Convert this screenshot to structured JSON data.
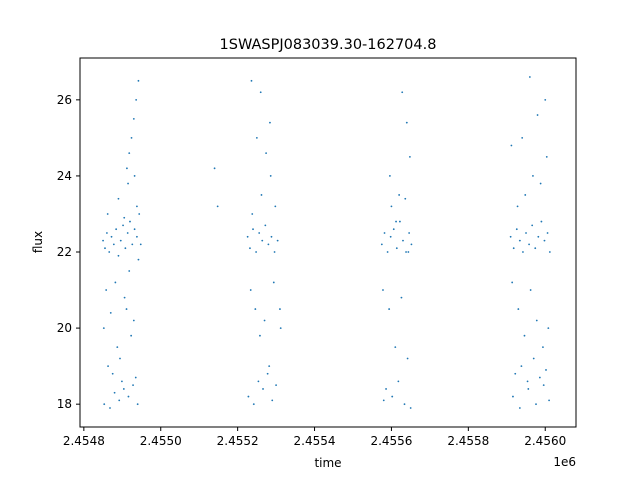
{
  "chart_data": {
    "type": "scatter",
    "title": "1SWASPJ083039.30-162704.8",
    "xlabel": "time",
    "ylabel": "flux",
    "x_offset_label": "1e6",
    "xlim": [
      2454790,
      2456080
    ],
    "ylim": [
      17.4,
      27.1
    ],
    "x_ticks": [
      2454800,
      2455000,
      2455200,
      2455400,
      2455600,
      2455800,
      2456000
    ],
    "x_tick_labels": [
      "2.4548",
      "2.4550",
      "2.4552",
      "2.4554",
      "2.4556",
      "2.4558",
      "2.4560"
    ],
    "y_ticks": [
      18,
      20,
      22,
      24,
      26
    ],
    "y_tick_labels": [
      "18",
      "20",
      "22",
      "24",
      "26"
    ],
    "grid": false,
    "marker_color": "#1f77b4",
    "series": [
      {
        "x": [
          2454850,
          2454855,
          2454860,
          2454866,
          2454872,
          2454878,
          2454884,
          2454890,
          2454896,
          2454902,
          2454908,
          2454914,
          2454920,
          2454926,
          2454932,
          2454938,
          2454944,
          2454948,
          2454852,
          2454863,
          2454875,
          2454887,
          2454899,
          2454911,
          2454923,
          2454935,
          2454858,
          2454870,
          2454882,
          2454894,
          2454906,
          2454918,
          2454930,
          2454942,
          2454853,
          2454868,
          2454880,
          2454892,
          2454904,
          2454916,
          2454928,
          2454940,
          2454912,
          2454918,
          2454924,
          2454936,
          2454942,
          2454930,
          2454862,
          2454890,
          2454915,
          2454938,
          2454905,
          2454932,
          2455140,
          2455148,
          2455226,
          2455232,
          2455240,
          2455248,
          2455256,
          2455264,
          2455272,
          2455280,
          2455288,
          2455296,
          2455304,
          2455234,
          2455246,
          2455258,
          2455270,
          2455282,
          2455294,
          2455228,
          2455242,
          2455254,
          2455266,
          2455278,
          2455290,
          2455300,
          2455238,
          2455262,
          2455286,
          2455250,
          2455274,
          2455298,
          2455236,
          2455260,
          2455284,
          2455310,
          2455312,
          2455575,
          2455582,
          2455590,
          2455598,
          2455606,
          2455614,
          2455622,
          2455630,
          2455638,
          2455646,
          2455652,
          2455578,
          2455594,
          2455610,
          2455626,
          2455642,
          2455586,
          2455602,
          2455618,
          2455634,
          2455650,
          2455580,
          2455600,
          2455620,
          2455640,
          2455648,
          2455596,
          2455612,
          2455628,
          2455636,
          2455644,
          2455910,
          2455918,
          2455926,
          2455934,
          2455942,
          2455950,
          2455958,
          2455966,
          2455974,
          2455982,
          2455990,
          2455998,
          2456006,
          2456012,
          2455914,
          2455930,
          2455946,
          2455962,
          2455978,
          2455994,
          2456008,
          2455922,
          2455938,
          2455954,
          2455970,
          2455986,
          2456002,
          2455916,
          2455934,
          2455956,
          2455976,
          2455996,
          2456010,
          2455928,
          2455948,
          2455968,
          2455988,
          2456004,
          2455940,
          2455980,
          2455912,
          2455960,
          2456000
        ],
        "y": [
          22.3,
          22.1,
          22.5,
          22.0,
          22.4,
          22.2,
          22.6,
          21.9,
          22.3,
          22.7,
          22.1,
          22.5,
          22.8,
          22.2,
          22.6,
          22.4,
          23.0,
          22.2,
          20.0,
          19.0,
          18.8,
          19.5,
          18.6,
          20.5,
          19.8,
          18.7,
          21.0,
          20.4,
          21.2,
          19.2,
          20.8,
          21.5,
          20.2,
          21.8,
          18.0,
          17.9,
          18.3,
          18.1,
          18.4,
          18.2,
          18.5,
          18.0,
          24.2,
          24.6,
          25.0,
          26.0,
          26.5,
          25.5,
          23.0,
          23.4,
          23.8,
          23.2,
          22.9,
          24.0,
          24.2,
          23.2,
          22.4,
          22.1,
          22.6,
          22.0,
          22.5,
          22.3,
          22.7,
          22.2,
          22.4,
          22.0,
          22.3,
          21.0,
          20.5,
          19.8,
          20.2,
          19.0,
          21.2,
          18.2,
          18.0,
          18.6,
          18.4,
          18.8,
          18.1,
          18.5,
          23.0,
          23.5,
          24.0,
          25.0,
          24.6,
          23.2,
          26.5,
          26.2,
          25.4,
          20.5,
          20.0,
          22.2,
          22.5,
          22.0,
          22.4,
          22.6,
          22.1,
          22.8,
          22.3,
          22.0,
          22.5,
          22.2,
          21.0,
          20.5,
          19.5,
          20.8,
          19.2,
          18.4,
          18.2,
          18.6,
          18.0,
          17.9,
          18.1,
          23.2,
          23.5,
          25.4,
          24.5,
          24.0,
          22.8,
          26.2,
          23.4,
          22.0,
          22.4,
          22.1,
          22.6,
          22.3,
          22.0,
          22.5,
          22.2,
          22.7,
          22.1,
          22.4,
          22.8,
          22.3,
          22.5,
          22.0,
          21.2,
          20.5,
          19.8,
          21.0,
          20.2,
          19.5,
          20.0,
          18.8,
          19.0,
          18.6,
          19.2,
          18.7,
          18.9,
          18.2,
          17.9,
          18.4,
          18.0,
          18.5,
          18.1,
          23.2,
          23.5,
          24.0,
          23.8,
          24.5,
          25.0,
          25.6,
          24.8,
          26.6,
          26.0
        ]
      }
    ]
  }
}
